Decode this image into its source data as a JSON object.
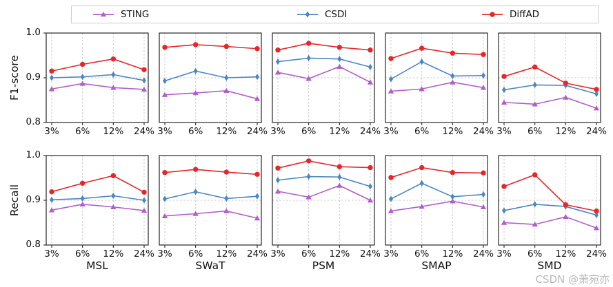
{
  "watermark": "CSDN @萧宛亦",
  "chart_data": {
    "type": "line",
    "x_categories": [
      "3%",
      "6%",
      "12%",
      "24%"
    ],
    "ylim": [
      0.8,
      1.0
    ],
    "yticks": [
      1.0,
      0.9,
      0.8
    ],
    "grid": {
      "vertical": true,
      "horizontal_at": 0.9,
      "style": "dashed"
    },
    "legend_position": "top",
    "datasets": [
      "MSL",
      "SWaT",
      "PSM",
      "SMAP",
      "SMD"
    ],
    "series_meta": [
      {
        "name": "STING",
        "color": "#b05fc6",
        "marker": "triangle"
      },
      {
        "name": "CSDI",
        "color": "#4b86c4",
        "marker": "thin-diamond"
      },
      {
        "name": "DiffAD",
        "color": "#e62629",
        "marker": "circle"
      }
    ],
    "rows": [
      {
        "ylabel": "F1-score",
        "panels": [
          {
            "dataset": "MSL",
            "series": {
              "STING": [
                0.875,
                0.887,
                0.878,
                0.874
              ],
              "CSDI": [
                0.9,
                0.902,
                0.907,
                0.894
              ],
              "DiffAD": [
                0.915,
                0.93,
                0.942,
                0.918
              ]
            }
          },
          {
            "dataset": "SWaT",
            "series": {
              "STING": [
                0.862,
                0.866,
                0.871,
                0.853
              ],
              "CSDI": [
                0.893,
                0.915,
                0.9,
                0.902
              ],
              "DiffAD": [
                0.968,
                0.974,
                0.97,
                0.965
              ]
            }
          },
          {
            "dataset": "PSM",
            "series": {
              "STING": [
                0.912,
                0.898,
                0.925,
                0.89
              ],
              "CSDI": [
                0.936,
                0.944,
                0.942,
                0.924
              ],
              "DiffAD": [
                0.962,
                0.977,
                0.968,
                0.962
              ]
            }
          },
          {
            "dataset": "SMAP",
            "series": {
              "STING": [
                0.87,
                0.875,
                0.89,
                0.878
              ],
              "CSDI": [
                0.897,
                0.936,
                0.904,
                0.905
              ],
              "DiffAD": [
                0.943,
                0.966,
                0.955,
                0.952
              ]
            }
          },
          {
            "dataset": "SMD",
            "series": {
              "STING": [
                0.845,
                0.841,
                0.856,
                0.832
              ],
              "CSDI": [
                0.873,
                0.884,
                0.883,
                0.864
              ],
              "DiffAD": [
                0.903,
                0.924,
                0.888,
                0.874
              ]
            }
          }
        ]
      },
      {
        "ylabel": "Recall",
        "panels": [
          {
            "dataset": "MSL",
            "series": {
              "STING": [
                0.878,
                0.891,
                0.885,
                0.877
              ],
              "CSDI": [
                0.901,
                0.904,
                0.91,
                0.9
              ],
              "DiffAD": [
                0.919,
                0.938,
                0.955,
                0.918
              ]
            }
          },
          {
            "dataset": "SWaT",
            "series": {
              "STING": [
                0.865,
                0.87,
                0.876,
                0.86
              ],
              "CSDI": [
                0.903,
                0.919,
                0.904,
                0.909
              ],
              "DiffAD": [
                0.962,
                0.969,
                0.963,
                0.958
              ]
            }
          },
          {
            "dataset": "PSM",
            "series": {
              "STING": [
                0.92,
                0.907,
                0.933,
                0.9
              ],
              "CSDI": [
                0.945,
                0.953,
                0.952,
                0.931
              ],
              "DiffAD": [
                0.972,
                0.988,
                0.975,
                0.973
              ]
            }
          },
          {
            "dataset": "SMAP",
            "series": {
              "STING": [
                0.876,
                0.886,
                0.898,
                0.885
              ],
              "CSDI": [
                0.903,
                0.938,
                0.908,
                0.913
              ],
              "DiffAD": [
                0.951,
                0.973,
                0.962,
                0.961
              ]
            }
          },
          {
            "dataset": "SMD",
            "series": {
              "STING": [
                0.85,
                0.846,
                0.863,
                0.838
              ],
              "CSDI": [
                0.877,
                0.891,
                0.886,
                0.867
              ],
              "DiffAD": [
                0.931,
                0.957,
                0.89,
                0.876
              ]
            }
          }
        ]
      }
    ]
  }
}
